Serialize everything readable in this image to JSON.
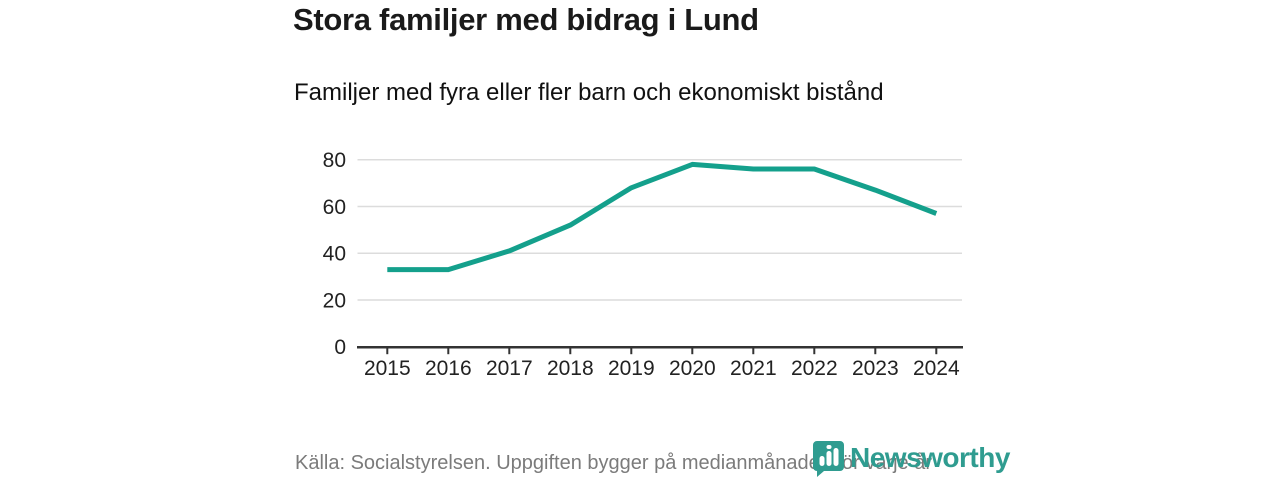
{
  "header": {
    "title": "Stora familjer med bidrag i Lund",
    "subtitle": "Familjer med fyra eller fler barn och ekonomiskt bistånd"
  },
  "footer": {
    "source": "Källa: Socialstyrelsen. Uppgiften bygger på medianmånaden för varje år",
    "logo_text": "Newsworthy"
  },
  "colors": {
    "line": "#14a08c",
    "grid": "#dcdcdc",
    "axis": "#333333",
    "tick_label": "#222222",
    "muted_text": "#7b7b7b",
    "brand": "#2f9c90"
  },
  "chart_data": {
    "type": "line",
    "x": [
      2015,
      2016,
      2017,
      2018,
      2019,
      2020,
      2021,
      2022,
      2023,
      2024
    ],
    "series": [
      {
        "name": "Familjer med fyra eller fler barn och ekonomiskt bistånd",
        "values": [
          33,
          33,
          41,
          52,
          68,
          78,
          76,
          76,
          67,
          57
        ]
      }
    ],
    "title": "Stora familjer med bidrag i Lund",
    "xlabel": "",
    "ylabel": "",
    "ylim": [
      0,
      80
    ],
    "yticks": [
      0,
      20,
      40,
      60,
      80
    ],
    "grid": "horizontal",
    "legend": "none"
  }
}
